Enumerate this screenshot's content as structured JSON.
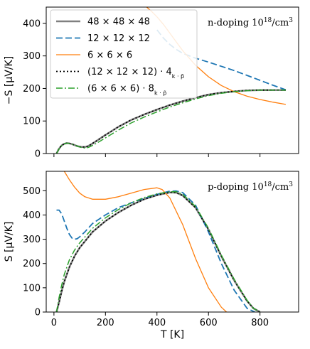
{
  "chart_data": [
    {
      "type": "line",
      "annotation": "n-doping 10¹⁸/cm³",
      "xlabel": "",
      "ylabel": "−S [μV/K]",
      "xlim": [
        -30,
        950
      ],
      "ylim": [
        0,
        450
      ],
      "xticks": [
        0,
        200,
        400,
        600,
        800
      ],
      "show_xtick_labels": false,
      "yticks": [
        0,
        100,
        200,
        300,
        400
      ],
      "yticklabels": [
        "0",
        "100",
        "200",
        "300",
        "400"
      ],
      "grid": false,
      "legend_position": "top-left",
      "series": [
        {
          "name": "48 × 48 × 48",
          "color": "#808080",
          "dash": "solid",
          "width": 2.5,
          "x": [
            10,
            20,
            30,
            40,
            50,
            60,
            70,
            80,
            90,
            100,
            110,
            120,
            130,
            140,
            150,
            175,
            200,
            250,
            300,
            350,
            400,
            450,
            500,
            550,
            600,
            650,
            700,
            750,
            800,
            850,
            900
          ],
          "y": [
            0,
            15,
            25,
            30,
            32,
            31,
            29,
            26,
            23,
            21,
            20,
            20,
            22,
            26,
            31,
            44,
            57,
            82,
            103,
            120,
            135,
            149,
            161,
            172,
            181,
            187,
            191,
            194,
            195,
            195,
            195
          ]
        },
        {
          "name": "12 × 12 × 12",
          "color": "#1f77b4",
          "dash": "dashed",
          "width": 1.8,
          "x": [
            400,
            425,
            450,
            475,
            500,
            550,
            600,
            650,
            700,
            750,
            800,
            850,
            900
          ],
          "y": [
            380,
            355,
            335,
            320,
            308,
            293,
            281,
            268,
            255,
            240,
            225,
            210,
            196
          ]
        },
        {
          "name": "6 × 6 × 6",
          "color": "#ff7f0e",
          "dash": "solid",
          "width": 1.3,
          "x": [
            360,
            375,
            400,
            425,
            450,
            475,
            500,
            550,
            600,
            650,
            700,
            750,
            800,
            850,
            900
          ],
          "y": [
            450,
            440,
            420,
            397,
            370,
            343,
            316,
            271,
            236,
            209,
            190,
            176,
            166,
            158,
            151
          ]
        },
        {
          "name": "(12 × 12 × 12) · 4",
          "name_sub": "k · p̃",
          "color": "#000000",
          "dash": "dotted",
          "width": 1.8,
          "x": [
            10,
            20,
            30,
            40,
            50,
            60,
            70,
            80,
            90,
            100,
            110,
            120,
            130,
            140,
            150,
            175,
            200,
            250,
            300,
            350,
            400,
            450,
            500,
            550,
            600,
            650,
            700,
            750,
            800,
            850,
            900
          ],
          "y": [
            0,
            15,
            25,
            30,
            32,
            31,
            29,
            26,
            23,
            21,
            20,
            20,
            22,
            26,
            31,
            44,
            57,
            82,
            103,
            120,
            135,
            149,
            161,
            172,
            181,
            187,
            191,
            194,
            195,
            195,
            195
          ]
        },
        {
          "name": "(6 × 6 × 6) · 8",
          "name_sub": "k · p̃",
          "color": "#2ca02c",
          "dash": "dashdot",
          "width": 1.5,
          "x": [
            10,
            20,
            30,
            40,
            50,
            60,
            70,
            80,
            90,
            100,
            110,
            120,
            130,
            140,
            150,
            175,
            200,
            250,
            300,
            350,
            400,
            450,
            500,
            550,
            600,
            650,
            700,
            750,
            800,
            850,
            900
          ],
          "y": [
            0,
            14,
            24,
            30,
            32,
            31,
            29,
            26,
            23,
            20,
            18,
            17,
            18,
            21,
            25,
            36,
            48,
            72,
            94,
            112,
            128,
            143,
            156,
            168,
            178,
            185,
            190,
            193,
            195,
            195,
            195
          ]
        }
      ]
    },
    {
      "type": "line",
      "annotation": "p-doping  10¹⁸/cm³",
      "xlabel": "T [K]",
      "ylabel": "S [μV/K]",
      "xlim": [
        -30,
        950
      ],
      "ylim": [
        0,
        580
      ],
      "xticks": [
        0,
        200,
        400,
        600,
        800
      ],
      "xticklabels": [
        "0",
        "200",
        "400",
        "600",
        "800"
      ],
      "show_xtick_labels": true,
      "yticks": [
        0,
        100,
        200,
        300,
        400,
        500
      ],
      "yticklabels": [
        "0",
        "100",
        "200",
        "300",
        "400",
        "500"
      ],
      "grid": false,
      "series": [
        {
          "name": "48 × 48 × 48",
          "color": "#808080",
          "dash": "solid",
          "width": 2.5,
          "x": [
            10,
            20,
            30,
            40,
            60,
            80,
            100,
            150,
            200,
            250,
            300,
            350,
            400,
            450,
            475,
            500,
            550,
            600,
            650,
            700,
            750,
            775,
            800
          ],
          "y": [
            0,
            40,
            85,
            125,
            185,
            230,
            265,
            330,
            375,
            410,
            440,
            465,
            482,
            493,
            492,
            480,
            430,
            340,
            230,
            130,
            45,
            15,
            0
          ]
        },
        {
          "name": "12 × 12 × 12",
          "color": "#1f77b4",
          "dash": "dashed",
          "width": 1.8,
          "x": [
            10,
            20,
            30,
            40,
            50,
            60,
            70,
            80,
            90,
            100,
            120,
            150,
            200,
            250,
            300,
            350,
            400,
            450,
            475,
            500,
            550,
            600,
            650,
            700,
            750,
            780
          ],
          "y": [
            420,
            420,
            405,
            375,
            345,
            320,
            305,
            300,
            302,
            310,
            330,
            365,
            400,
            430,
            450,
            468,
            485,
            498,
            499,
            492,
            440,
            330,
            200,
            90,
            15,
            0
          ]
        },
        {
          "name": "6 × 6 × 6",
          "color": "#ff7f0e",
          "dash": "solid",
          "width": 1.3,
          "x": [
            40,
            60,
            80,
            100,
            120,
            150,
            200,
            250,
            300,
            350,
            400,
            420,
            450,
            500,
            550,
            600,
            650,
            670
          ],
          "y": [
            580,
            545,
            515,
            490,
            475,
            465,
            465,
            475,
            490,
            505,
            512,
            505,
            470,
            360,
            220,
            100,
            20,
            0
          ]
        },
        {
          "name": "(12 × 12 × 12) · 4",
          "name_sub": "k · p̃",
          "color": "#000000",
          "dash": "dotted",
          "width": 1.8,
          "x": [
            10,
            20,
            30,
            40,
            60,
            80,
            100,
            150,
            200,
            250,
            300,
            350,
            400,
            450,
            475,
            500,
            550,
            600,
            650,
            700,
            750,
            775,
            800
          ],
          "y": [
            0,
            40,
            85,
            125,
            185,
            230,
            265,
            330,
            375,
            410,
            440,
            465,
            482,
            493,
            492,
            480,
            430,
            340,
            230,
            130,
            45,
            15,
            0
          ]
        },
        {
          "name": "(6 × 6 × 6) · 8",
          "name_sub": "k · p̃",
          "color": "#2ca02c",
          "dash": "dashdot",
          "width": 1.5,
          "x": [
            10,
            20,
            30,
            40,
            60,
            80,
            100,
            150,
            200,
            250,
            300,
            350,
            400,
            450,
            475,
            500,
            550,
            600,
            650,
            700,
            750,
            775,
            800
          ],
          "y": [
            0,
            60,
            110,
            155,
            215,
            255,
            285,
            345,
            388,
            422,
            450,
            472,
            487,
            496,
            496,
            485,
            435,
            345,
            235,
            135,
            48,
            15,
            0
          ]
        }
      ]
    }
  ]
}
